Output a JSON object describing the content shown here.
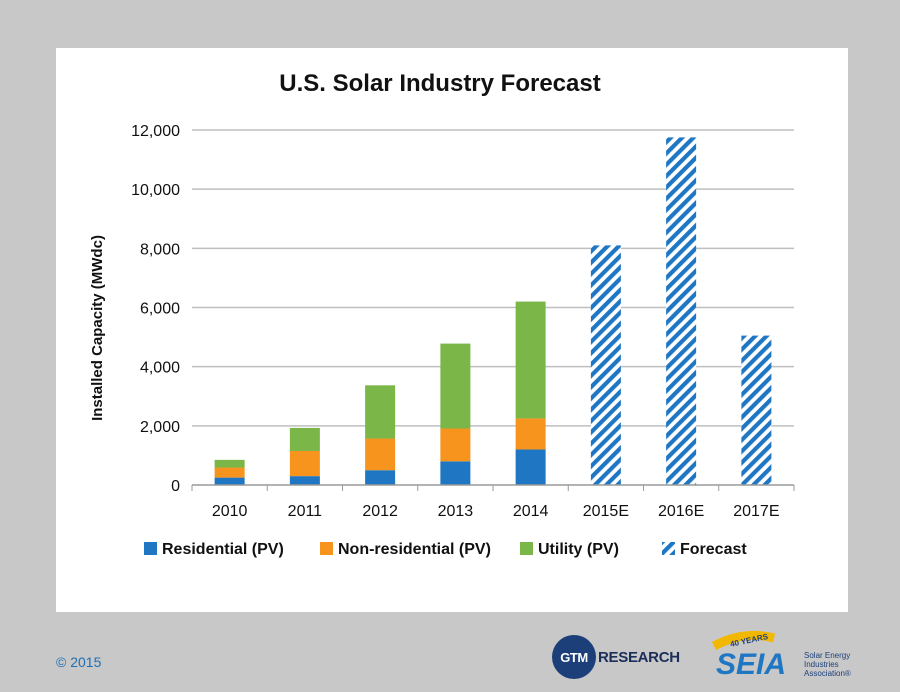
{
  "chart_data": {
    "type": "bar",
    "stacked": true,
    "title": "U.S. Solar Industry Forecast",
    "ylabel": "Installed Capacity (MWdc)",
    "xlabel": "",
    "ylim": [
      0,
      12000
    ],
    "yticks": [
      0,
      2000,
      4000,
      6000,
      8000,
      10000,
      12000
    ],
    "ytick_labels": [
      "0",
      "2,000",
      "4,000",
      "6,000",
      "8,000",
      "10,000",
      "12,000"
    ],
    "grid": true,
    "categories": [
      "2010",
      "2011",
      "2012",
      "2013",
      "2014",
      "2015E",
      "2016E",
      "2017E"
    ],
    "series": [
      {
        "name": "Residential (PV)",
        "color": "#1f77c4",
        "values": [
          250,
          300,
          500,
          800,
          1200,
          0,
          0,
          0
        ]
      },
      {
        "name": "Non-residential (PV)",
        "color": "#f7941d",
        "values": [
          340,
          850,
          1070,
          1110,
          1050,
          0,
          0,
          0
        ]
      },
      {
        "name": "Utility (PV)",
        "color": "#7ab648",
        "values": [
          260,
          780,
          1800,
          2870,
          3950,
          0,
          0,
          0
        ]
      },
      {
        "name": "Forecast",
        "color": "#1f77c4",
        "pattern": "diagonal-hatch",
        "values": [
          0,
          0,
          0,
          0,
          0,
          8100,
          11750,
          5050
        ]
      }
    ],
    "legend_position": "bottom"
  },
  "footer": {
    "copyright": "© 2015",
    "gtm_logo_text": "GTM",
    "gtm_research_text": "RESEARCH",
    "seia_logo_text": "SEIA",
    "seia_years_text": "40 YEARS",
    "seia_tagline": [
      "Solar Energy",
      "Industries",
      "Association®"
    ]
  }
}
